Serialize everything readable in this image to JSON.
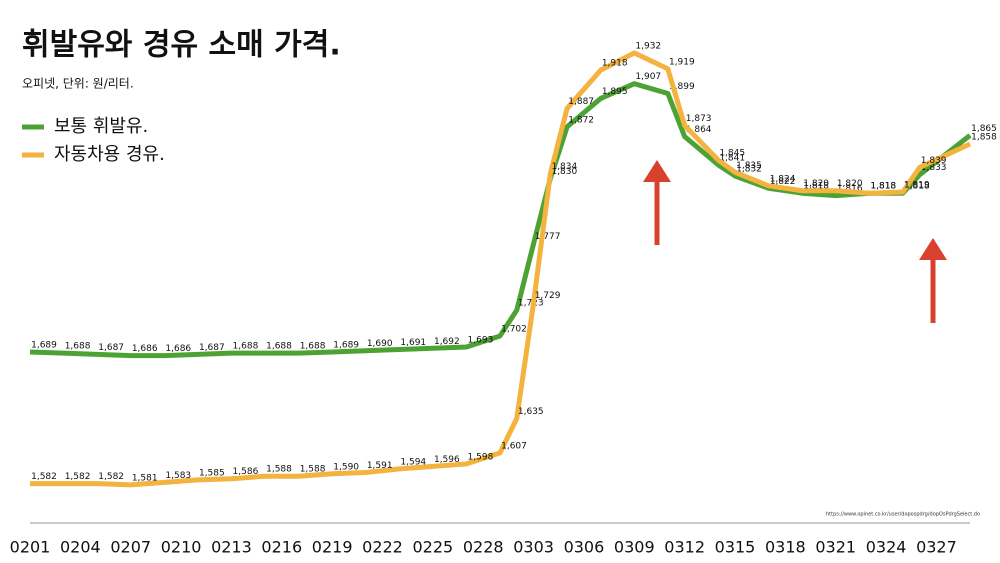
{
  "chart_data": {
    "type": "line",
    "title": "휘발유와 경유 소매 가격.",
    "subtitle": "오피넷, 단위: 원/리터.",
    "source": "https://www.opinet.co.kr/user/dopospdrg/dopOsPdrgSelect.do",
    "x": [
      0,
      2,
      4,
      6,
      8,
      10,
      12,
      14,
      16,
      18,
      20,
      22,
      24,
      26,
      28,
      29,
      30,
      31,
      32,
      34,
      36,
      38,
      39,
      41,
      42,
      44,
      46,
      48,
      50,
      52,
      53,
      56
    ],
    "series": [
      {
        "name": "보통 휘발유.",
        "color": "#4ca333",
        "values": [
          1689,
          1688,
          1687,
          1686,
          1686,
          1687,
          1688,
          1688,
          1688,
          1689,
          1690,
          1691,
          1692,
          1693,
          1702,
          1723,
          1777,
          1830,
          1872,
          1895,
          1907,
          1899,
          1864,
          1841,
          1832,
          1822,
          1818,
          1816,
          1818,
          1818,
          1833,
          1865
        ],
        "value_labels": [
          "1,689",
          "1,688",
          "1,687",
          "1,686",
          "1,686",
          "1,687",
          "1,688",
          "1,688",
          "1,688",
          "1,689",
          "1,690",
          "1,691",
          "1,692",
          "1,693",
          "1,702",
          "1,723",
          "1,777",
          "1,830",
          "1,872",
          "1,895",
          "1,907",
          "1,899",
          "1,864",
          "1,841",
          "1,832",
          "1,822",
          "1,818",
          "1,816",
          "1,818",
          "1,818",
          "1,833",
          "1,865"
        ]
      },
      {
        "name": "자동차용 경유.",
        "color": "#f4b23e",
        "values": [
          1582,
          1582,
          1582,
          1581,
          1583,
          1585,
          1586,
          1588,
          1588,
          1590,
          1591,
          1594,
          1596,
          1598,
          1607,
          1635,
          1729,
          1834,
          1887,
          1918,
          1932,
          1919,
          1873,
          1845,
          1835,
          1824,
          1820,
          1820,
          1818,
          1819,
          1839,
          1858
        ],
        "value_labels": [
          "1,582",
          "1,582",
          "1,582",
          "1,581",
          "1,583",
          "1,585",
          "1,586",
          "1,588",
          "1,588",
          "1,590",
          "1,591",
          "1,594",
          "1,596",
          "1,598",
          "1,607",
          "1,635",
          "1,729",
          "1,834",
          "1,887",
          "1,918",
          "1,932",
          "1,919",
          "1,873",
          "1,845",
          "1,835",
          "1,824",
          "1,820",
          "1,820",
          "1,818",
          "1,819",
          "1,839",
          "1,858"
        ]
      }
    ],
    "xlim": [
      0,
      56
    ],
    "xticks": [
      {
        "value": 0,
        "label": "0201"
      },
      {
        "value": 3,
        "label": "0204"
      },
      {
        "value": 6,
        "label": "0207"
      },
      {
        "value": 9,
        "label": "0210"
      },
      {
        "value": 12,
        "label": "0213"
      },
      {
        "value": 15,
        "label": "0216"
      },
      {
        "value": 18,
        "label": "0219"
      },
      {
        "value": 21,
        "label": "0222"
      },
      {
        "value": 24,
        "label": "0225"
      },
      {
        "value": 27,
        "label": "0228"
      },
      {
        "value": 30,
        "label": "0303"
      },
      {
        "value": 33,
        "label": "0306"
      },
      {
        "value": 36,
        "label": "0309"
      },
      {
        "value": 39,
        "label": "0312"
      },
      {
        "value": 42,
        "label": "0315"
      },
      {
        "value": 45,
        "label": "0318"
      },
      {
        "value": 48,
        "label": "0321"
      },
      {
        "value": 51,
        "label": "0324"
      },
      {
        "value": 54,
        "label": "0327"
      }
    ],
    "ylim": [
      1550,
      1975
    ]
  }
}
